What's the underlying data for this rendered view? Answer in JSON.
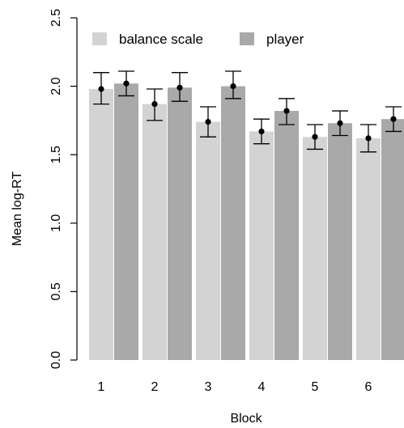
{
  "chart_data": {
    "type": "bar",
    "title": "",
    "xlabel": "Block",
    "ylabel": "Mean log-RT",
    "categories": [
      "1",
      "2",
      "3",
      "4",
      "5",
      "6"
    ],
    "ylim": [
      0,
      2.5
    ],
    "yticks": [
      "0.0",
      "0.5",
      "1.0",
      "1.5",
      "2.0",
      "2.5"
    ],
    "error_bars": true,
    "legend_position": "top-left",
    "series": [
      {
        "name": "balance scale",
        "color": "#d3d3d3",
        "values": [
          1.98,
          1.87,
          1.74,
          1.67,
          1.63,
          1.62
        ],
        "error_low": [
          1.87,
          1.75,
          1.63,
          1.58,
          1.54,
          1.52
        ],
        "error_high": [
          2.1,
          1.98,
          1.85,
          1.76,
          1.72,
          1.72
        ]
      },
      {
        "name": "player",
        "color": "#a9a9a9",
        "values": [
          2.02,
          1.99,
          2.0,
          1.82,
          1.73,
          1.76
        ],
        "error_low": [
          1.93,
          1.89,
          1.91,
          1.72,
          1.64,
          1.67
        ],
        "error_high": [
          2.11,
          2.1,
          2.11,
          1.91,
          1.82,
          1.85
        ]
      }
    ]
  }
}
